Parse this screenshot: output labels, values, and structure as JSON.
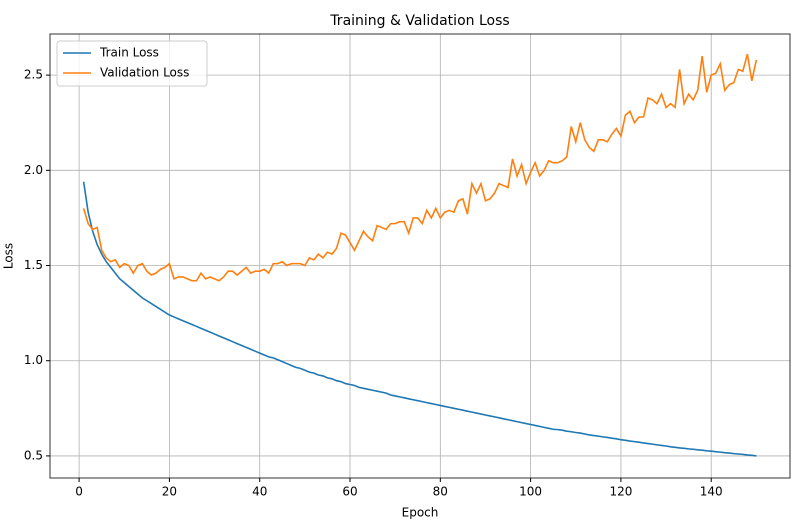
{
  "chart_data": {
    "type": "line",
    "title": "Training & Validation Loss",
    "x_label": "Epoch",
    "y_label": "Loss",
    "x": [
      1,
      2,
      3,
      4,
      5,
      6,
      7,
      8,
      9,
      10,
      11,
      12,
      13,
      14,
      15,
      16,
      17,
      18,
      19,
      20,
      21,
      22,
      23,
      24,
      25,
      26,
      27,
      28,
      29,
      30,
      31,
      32,
      33,
      34,
      35,
      36,
      37,
      38,
      39,
      40,
      41,
      42,
      43,
      44,
      45,
      46,
      47,
      48,
      49,
      50,
      51,
      52,
      53,
      54,
      55,
      56,
      57,
      58,
      59,
      60,
      61,
      62,
      63,
      64,
      65,
      66,
      67,
      68,
      69,
      70,
      71,
      72,
      73,
      74,
      75,
      76,
      77,
      78,
      79,
      80,
      81,
      82,
      83,
      84,
      85,
      86,
      87,
      88,
      89,
      90,
      91,
      92,
      93,
      94,
      95,
      96,
      97,
      98,
      99,
      100,
      101,
      102,
      103,
      104,
      105,
      106,
      107,
      108,
      109,
      110,
      111,
      112,
      113,
      114,
      115,
      116,
      117,
      118,
      119,
      120,
      121,
      122,
      123,
      124,
      125,
      126,
      127,
      128,
      129,
      130,
      131,
      132,
      133,
      134,
      135,
      136,
      137,
      138,
      139,
      140,
      141,
      142,
      143,
      144,
      145,
      146,
      147,
      148,
      149,
      150
    ],
    "series": [
      {
        "name": "Train Loss",
        "color": "#1f77b4",
        "values": [
          1.94,
          1.78,
          1.68,
          1.61,
          1.56,
          1.52,
          1.49,
          1.46,
          1.43,
          1.41,
          1.39,
          1.37,
          1.35,
          1.33,
          1.315,
          1.3,
          1.285,
          1.27,
          1.255,
          1.24,
          1.23,
          1.22,
          1.21,
          1.2,
          1.19,
          1.18,
          1.17,
          1.16,
          1.15,
          1.14,
          1.13,
          1.12,
          1.11,
          1.1,
          1.09,
          1.08,
          1.07,
          1.06,
          1.05,
          1.04,
          1.03,
          1.02,
          1.015,
          1.005,
          0.995,
          0.985,
          0.975,
          0.965,
          0.96,
          0.95,
          0.94,
          0.935,
          0.925,
          0.92,
          0.91,
          0.905,
          0.895,
          0.89,
          0.88,
          0.875,
          0.87,
          0.86,
          0.855,
          0.85,
          0.845,
          0.84,
          0.835,
          0.83,
          0.82,
          0.815,
          0.81,
          0.805,
          0.8,
          0.795,
          0.79,
          0.785,
          0.78,
          0.775,
          0.77,
          0.765,
          0.76,
          0.755,
          0.75,
          0.745,
          0.74,
          0.735,
          0.73,
          0.725,
          0.72,
          0.715,
          0.71,
          0.705,
          0.7,
          0.695,
          0.69,
          0.685,
          0.68,
          0.675,
          0.67,
          0.665,
          0.66,
          0.655,
          0.65,
          0.645,
          0.64,
          0.638,
          0.635,
          0.63,
          0.627,
          0.623,
          0.62,
          0.615,
          0.61,
          0.607,
          0.604,
          0.6,
          0.597,
          0.593,
          0.59,
          0.585,
          0.582,
          0.578,
          0.575,
          0.572,
          0.568,
          0.565,
          0.562,
          0.558,
          0.555,
          0.552,
          0.548,
          0.545,
          0.542,
          0.54,
          0.537,
          0.535,
          0.532,
          0.53,
          0.527,
          0.525,
          0.522,
          0.52,
          0.517,
          0.515,
          0.512,
          0.51,
          0.508,
          0.505,
          0.503,
          0.5
        ]
      },
      {
        "name": "Validation Loss",
        "color": "#ff7f0e",
        "values": [
          1.8,
          1.72,
          1.69,
          1.7,
          1.58,
          1.54,
          1.52,
          1.53,
          1.49,
          1.51,
          1.5,
          1.46,
          1.5,
          1.51,
          1.47,
          1.45,
          1.46,
          1.48,
          1.49,
          1.51,
          1.43,
          1.44,
          1.44,
          1.43,
          1.42,
          1.42,
          1.46,
          1.43,
          1.44,
          1.43,
          1.42,
          1.44,
          1.47,
          1.47,
          1.45,
          1.47,
          1.49,
          1.46,
          1.47,
          1.47,
          1.48,
          1.46,
          1.51,
          1.51,
          1.52,
          1.5,
          1.51,
          1.51,
          1.51,
          1.5,
          1.54,
          1.53,
          1.56,
          1.54,
          1.57,
          1.56,
          1.59,
          1.67,
          1.66,
          1.62,
          1.58,
          1.63,
          1.68,
          1.65,
          1.63,
          1.71,
          1.7,
          1.69,
          1.72,
          1.72,
          1.73,
          1.73,
          1.67,
          1.75,
          1.75,
          1.72,
          1.79,
          1.75,
          1.8,
          1.75,
          1.78,
          1.79,
          1.78,
          1.84,
          1.85,
          1.77,
          1.93,
          1.88,
          1.93,
          1.84,
          1.85,
          1.88,
          1.93,
          1.92,
          1.91,
          2.06,
          1.97,
          2.03,
          1.93,
          1.99,
          2.04,
          1.97,
          2.0,
          2.05,
          2.04,
          2.04,
          2.05,
          2.07,
          2.23,
          2.15,
          2.25,
          2.16,
          2.12,
          2.1,
          2.16,
          2.16,
          2.15,
          2.19,
          2.22,
          2.18,
          2.29,
          2.31,
          2.25,
          2.28,
          2.28,
          2.38,
          2.37,
          2.35,
          2.4,
          2.33,
          2.35,
          2.33,
          2.53,
          2.35,
          2.4,
          2.37,
          2.42,
          2.6,
          2.41,
          2.5,
          2.51,
          2.56,
          2.42,
          2.45,
          2.46,
          2.53,
          2.52,
          2.61,
          2.47,
          2.58
        ]
      }
    ],
    "xlim": [
      -6.45,
      157.45
    ],
    "ylim": [
      0.384,
      2.716
    ],
    "xticks": [
      0,
      20,
      40,
      60,
      80,
      100,
      120,
      140
    ],
    "yticks": [
      {
        "value": 0.5,
        "label": "0.5"
      },
      {
        "value": 1.0,
        "label": "1.0"
      },
      {
        "value": 1.5,
        "label": "1.5"
      },
      {
        "value": 2.0,
        "label": "2.0"
      },
      {
        "value": 2.5,
        "label": "2.5"
      }
    ],
    "grid": true,
    "legend": "upper left"
  }
}
